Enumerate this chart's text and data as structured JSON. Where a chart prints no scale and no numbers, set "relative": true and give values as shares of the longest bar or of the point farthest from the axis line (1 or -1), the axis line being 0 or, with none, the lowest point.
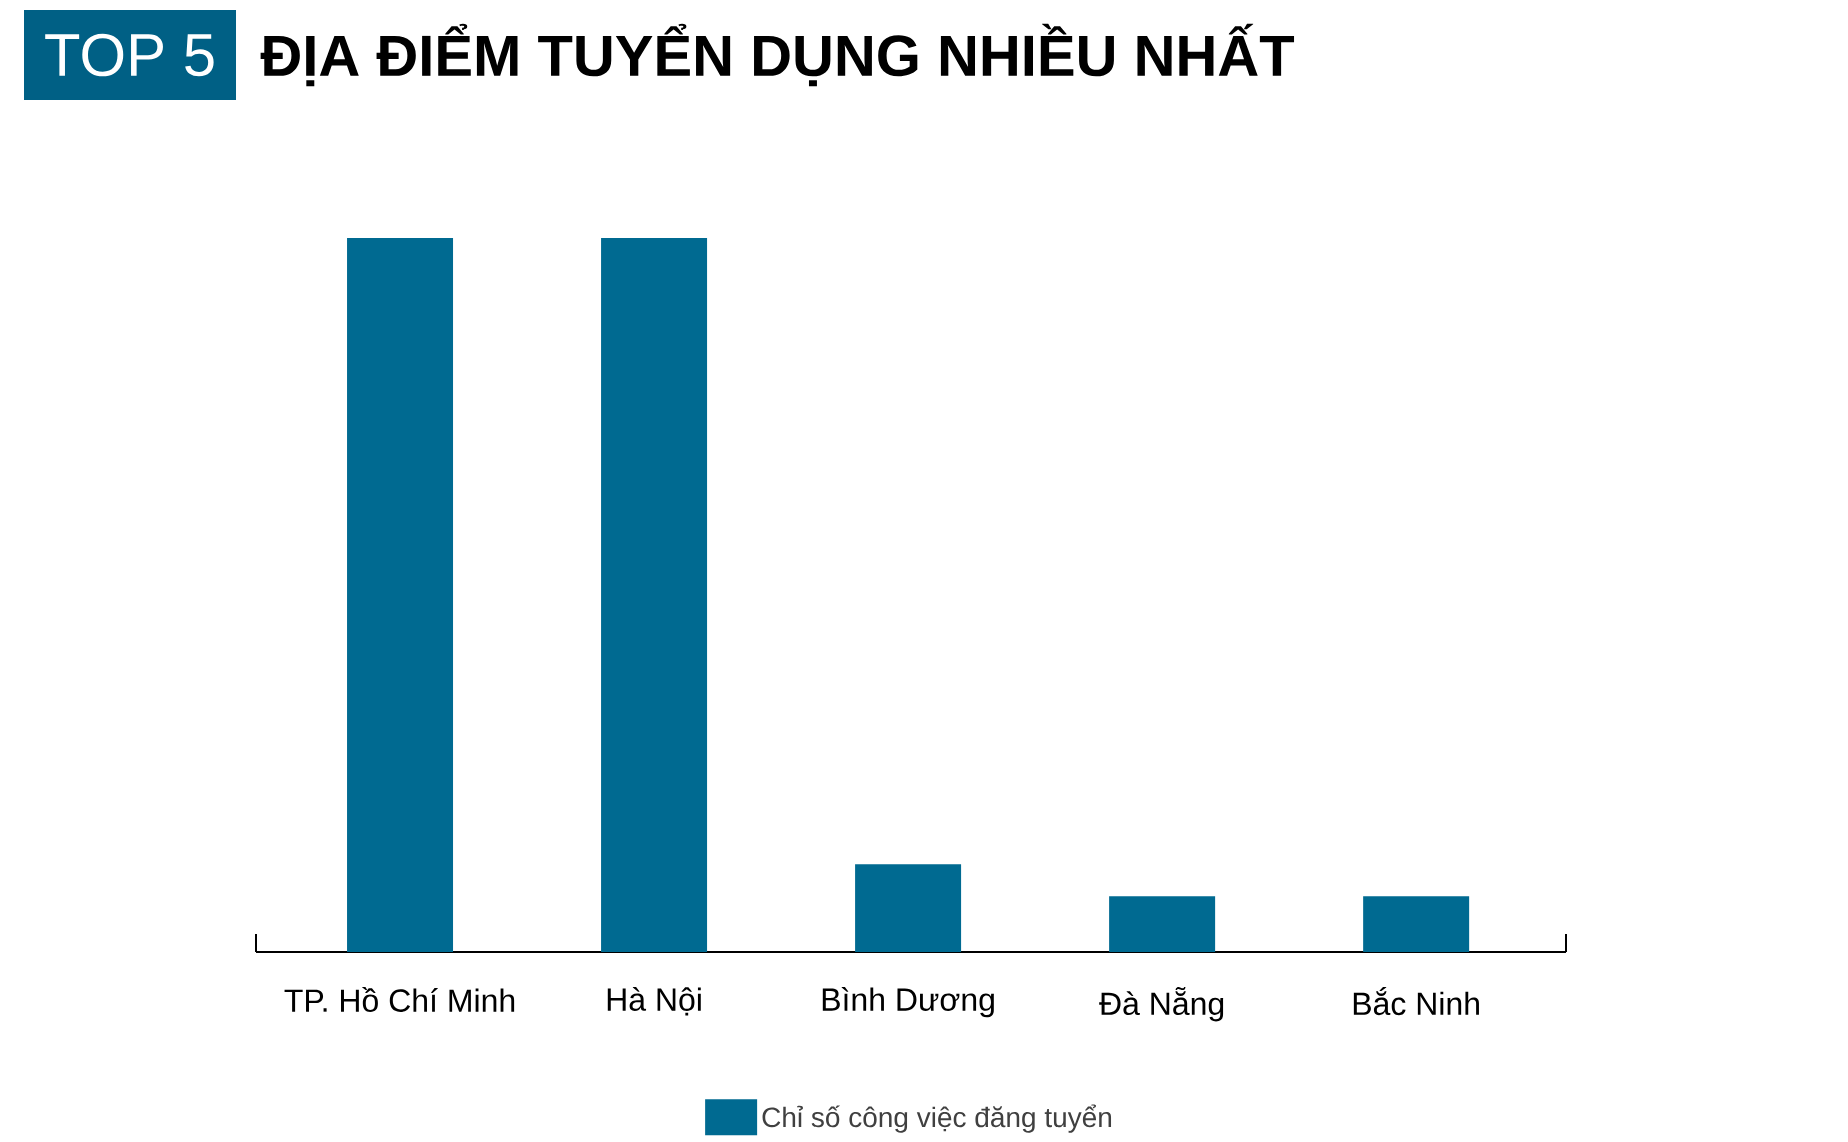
{
  "chart_data": {
    "type": "bar",
    "title": "ĐỊA ĐIỂM TUYỂN DỤNG NHIỀU NHẤT",
    "annotations": [
      "TOP 5"
    ],
    "categories": [
      "TP. Hồ Chí Minh",
      "Hà Nội",
      "Bình Dương",
      "Đà Nẵng",
      "Bắc Ninh"
    ],
    "series": [
      {
        "name": "Chỉ số công việc đăng tuyển",
        "color": "#006a91",
        "values": [
          1,
          1,
          0.123,
          0.078,
          0.078
        ]
      }
    ],
    "relative": true,
    "legend": "bottom"
  }
}
